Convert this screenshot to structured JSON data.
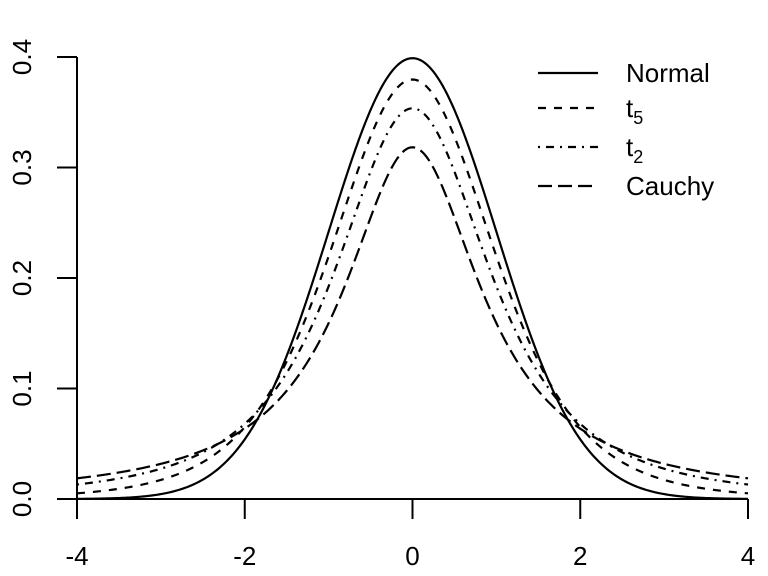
{
  "chart_data": {
    "type": "line",
    "title": "",
    "xlabel": "",
    "ylabel": "",
    "xlim": [
      -4,
      4
    ],
    "ylim": [
      0,
      0.4
    ],
    "grid": false,
    "legend_position": "top-right",
    "x_ticks": [
      "-4",
      "-2",
      "0",
      "2",
      "4"
    ],
    "y_ticks": [
      "0.0",
      "0.1",
      "0.2",
      "0.3",
      "0.4"
    ],
    "series": [
      {
        "name": "Normal",
        "sub": "",
        "distribution": "normal",
        "df": null,
        "peak": 0.3989,
        "line_style": "solid",
        "color": "#000000"
      },
      {
        "name": "t",
        "sub": "5",
        "distribution": "t",
        "df": 5,
        "peak": 0.3796,
        "line_style": "dashed",
        "color": "#000000"
      },
      {
        "name": "t",
        "sub": "2",
        "distribution": "t",
        "df": 2,
        "peak": 0.3536,
        "line_style": "dotdash",
        "color": "#000000"
      },
      {
        "name": "Cauchy",
        "sub": "",
        "distribution": "t",
        "df": 1,
        "peak": 0.3183,
        "line_style": "longdash",
        "color": "#000000"
      }
    ]
  }
}
